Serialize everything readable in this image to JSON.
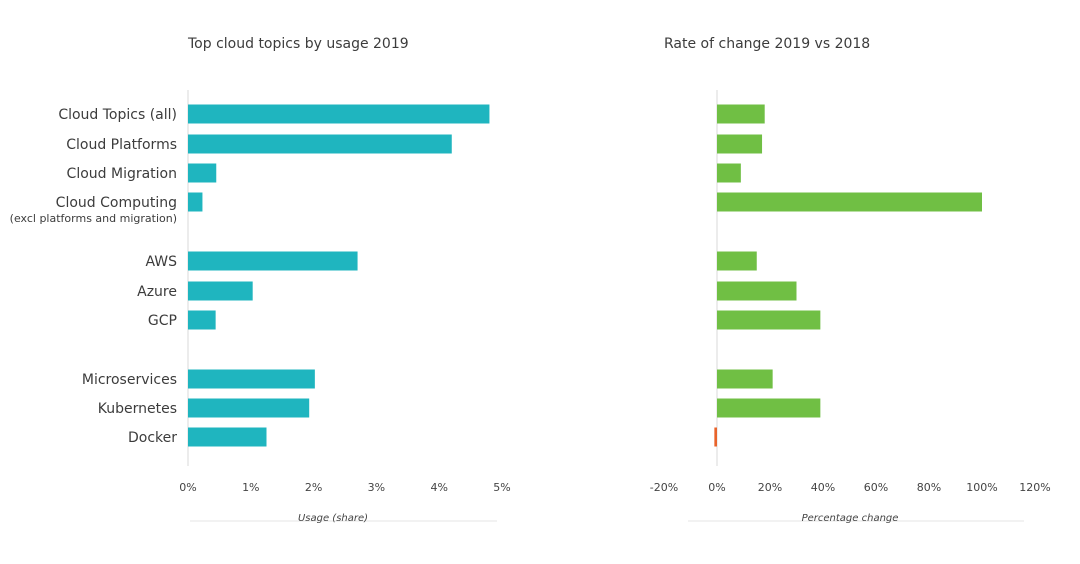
{
  "chart_data": [
    {
      "type": "bar",
      "orientation": "horizontal",
      "title": "Top cloud topics by usage 2019",
      "xlabel": "Usage (share)",
      "categories": [
        "Cloud Topics (all)",
        "Cloud Platforms",
        "Cloud Migration",
        "Cloud Computing",
        "AWS",
        "Azure",
        "GCP",
        "Microservices",
        "Kubernetes",
        "Docker"
      ],
      "category_sublabels": {
        "Cloud Computing": "(excl platforms and migration)"
      },
      "values": [
        4.8,
        4.2,
        0.45,
        0.23,
        2.7,
        1.03,
        0.44,
        2.02,
        1.93,
        1.25
      ],
      "xlim": [
        0,
        5
      ],
      "xticks": [
        "0%",
        "1%",
        "2%",
        "3%",
        "4%",
        "5%"
      ],
      "bar_color": "#1fb5bf",
      "grid": false
    },
    {
      "type": "bar",
      "orientation": "horizontal",
      "title": "Rate of change 2019 vs 2018",
      "xlabel": "Percentage change",
      "categories": [
        "Cloud Topics (all)",
        "Cloud Platforms",
        "Cloud Migration",
        "Cloud Computing",
        "AWS",
        "Azure",
        "GCP",
        "Microservices",
        "Kubernetes",
        "Docker"
      ],
      "values": [
        18,
        17,
        9,
        100,
        15,
        30,
        39,
        21,
        39,
        -1
      ],
      "xlim": [
        -20,
        120
      ],
      "xticks": [
        "-20%",
        "0%",
        "20%",
        "40%",
        "60%",
        "80%",
        "100%",
        "120%"
      ],
      "positive_color": "#70bf44",
      "negative_color": "#e8632b",
      "grid": false
    }
  ]
}
